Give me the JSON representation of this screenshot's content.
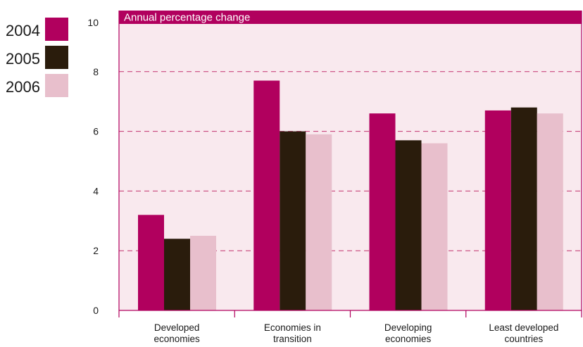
{
  "chart_data": {
    "type": "bar",
    "title": "Annual percentage change",
    "categories": [
      [
        "Developed",
        "economies"
      ],
      [
        "Economies in",
        "transition"
      ],
      [
        "Developing",
        "economies"
      ],
      [
        "Least developed",
        "countries"
      ]
    ],
    "series": [
      {
        "name": "2004",
        "color": "#b1005e",
        "values": [
          3.2,
          7.7,
          6.6,
          6.7
        ]
      },
      {
        "name": "2005",
        "color": "#2a1c0c",
        "values": [
          2.4,
          6.0,
          5.7,
          6.8
        ]
      },
      {
        "name": "2006",
        "color": "#e8bfcc",
        "values": [
          2.5,
          5.9,
          5.6,
          6.6
        ]
      }
    ],
    "yticks": [
      0,
      2,
      4,
      6,
      8,
      10
    ],
    "ylim": [
      0,
      10
    ],
    "grid": true,
    "legend_position": "top-left",
    "colors": {
      "plot_background": "#f9e9ee",
      "title_bar": "#b1005e",
      "axis": "#b1005e",
      "gridline": "#c2336f"
    }
  }
}
